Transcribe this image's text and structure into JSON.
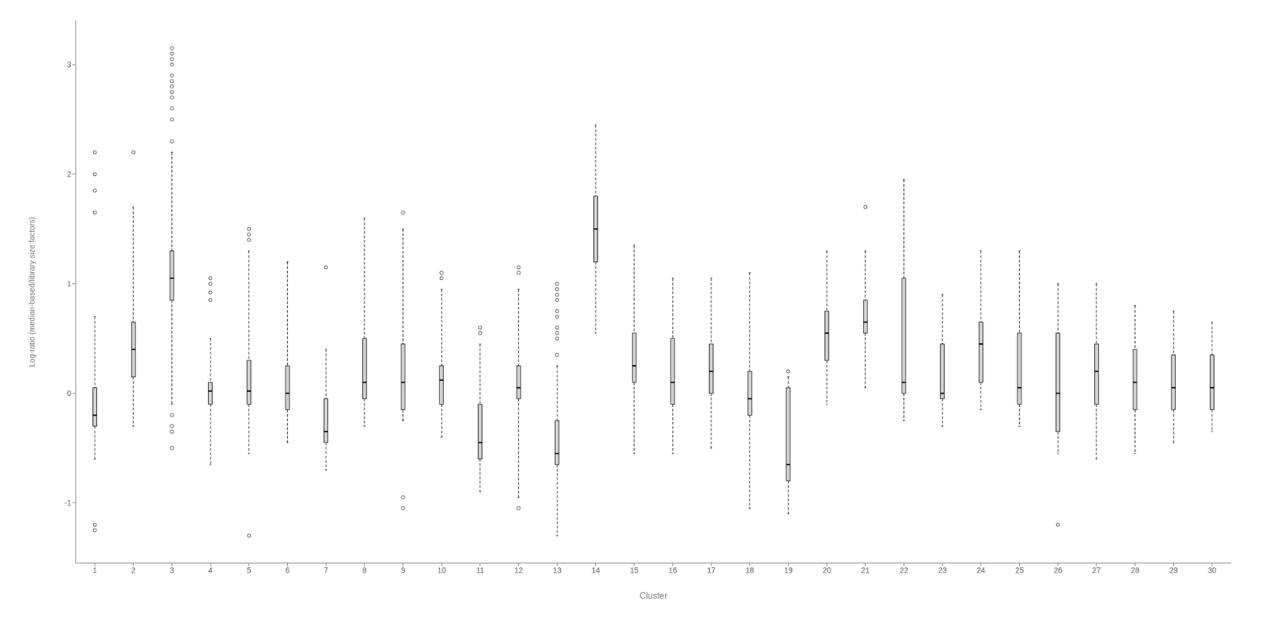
{
  "chart_data": {
    "type": "box",
    "xlabel": "Cluster",
    "ylabel": "Log-ratio (median-based/library size factors)",
    "categories": [
      "1",
      "2",
      "3",
      "4",
      "5",
      "6",
      "7",
      "8",
      "9",
      "10",
      "11",
      "12",
      "13",
      "14",
      "15",
      "16",
      "17",
      "18",
      "19",
      "20",
      "21",
      "22",
      "23",
      "24",
      "25",
      "26",
      "27",
      "28",
      "29",
      "30"
    ],
    "boxes": [
      {
        "q1": -0.3,
        "med": -0.2,
        "q3": 0.05,
        "whislo": -0.6,
        "whishi": 0.7,
        "fliers": [
          -1.2,
          -1.25,
          1.65,
          1.85,
          2.0,
          2.2
        ]
      },
      {
        "q1": 0.15,
        "med": 0.4,
        "q3": 0.65,
        "whislo": -0.3,
        "whishi": 1.7,
        "fliers": [
          2.2
        ]
      },
      {
        "q1": 0.85,
        "med": 1.05,
        "q3": 1.3,
        "whislo": -0.1,
        "whishi": 2.2,
        "fliers": [
          -0.2,
          -0.3,
          -0.35,
          -0.5,
          2.3,
          2.5,
          2.6,
          2.7,
          2.75,
          2.8,
          2.85,
          2.9,
          3.0,
          3.05,
          3.1,
          3.15
        ]
      },
      {
        "q1": -0.1,
        "med": 0.02,
        "q3": 0.1,
        "whislo": -0.65,
        "whishi": 0.5,
        "fliers": [
          0.85,
          0.92,
          1.0,
          1.05
        ]
      },
      {
        "q1": -0.1,
        "med": 0.02,
        "q3": 0.3,
        "whislo": -0.55,
        "whishi": 1.3,
        "fliers": [
          -1.3,
          1.4,
          1.45,
          1.5
        ]
      },
      {
        "q1": -0.15,
        "med": 0.0,
        "q3": 0.25,
        "whislo": -0.45,
        "whishi": 1.2,
        "fliers": []
      },
      {
        "q1": -0.45,
        "med": -0.35,
        "q3": -0.05,
        "whislo": -0.7,
        "whishi": 0.4,
        "fliers": [
          1.15
        ]
      },
      {
        "q1": -0.05,
        "med": 0.1,
        "q3": 0.5,
        "whislo": -0.3,
        "whishi": 1.6,
        "fliers": []
      },
      {
        "q1": -0.15,
        "med": 0.1,
        "q3": 0.45,
        "whislo": -0.25,
        "whishi": 1.5,
        "fliers": [
          -0.95,
          -1.05,
          1.65
        ]
      },
      {
        "q1": -0.1,
        "med": 0.12,
        "q3": 0.25,
        "whislo": -0.4,
        "whishi": 0.95,
        "fliers": [
          1.05,
          1.1
        ]
      },
      {
        "q1": -0.6,
        "med": -0.45,
        "q3": -0.1,
        "whislo": -0.9,
        "whishi": 0.45,
        "fliers": [
          0.55,
          0.6
        ]
      },
      {
        "q1": -0.05,
        "med": 0.05,
        "q3": 0.25,
        "whislo": -0.95,
        "whishi": 0.95,
        "fliers": [
          -1.05,
          1.1,
          1.15
        ]
      },
      {
        "q1": -0.65,
        "med": -0.55,
        "q3": -0.25,
        "whislo": -1.3,
        "whishi": 0.25,
        "fliers": [
          0.35,
          0.5,
          0.55,
          0.6,
          0.7,
          0.75,
          0.85,
          0.9,
          0.95,
          1.0
        ]
      },
      {
        "q1": 1.2,
        "med": 1.5,
        "q3": 1.8,
        "whislo": 0.55,
        "whishi": 2.45,
        "fliers": []
      },
      {
        "q1": 0.1,
        "med": 0.25,
        "q3": 0.55,
        "whislo": -0.55,
        "whishi": 1.35,
        "fliers": []
      },
      {
        "q1": -0.1,
        "med": 0.1,
        "q3": 0.5,
        "whislo": -0.55,
        "whishi": 1.05,
        "fliers": []
      },
      {
        "q1": 0.0,
        "med": 0.2,
        "q3": 0.45,
        "whislo": -0.5,
        "whishi": 1.05,
        "fliers": []
      },
      {
        "q1": -0.2,
        "med": -0.05,
        "q3": 0.2,
        "whislo": -1.05,
        "whishi": 1.1,
        "fliers": []
      },
      {
        "q1": -0.8,
        "med": -0.65,
        "q3": 0.05,
        "whislo": -1.1,
        "whishi": 0.15,
        "fliers": [
          0.2
        ]
      },
      {
        "q1": 0.3,
        "med": 0.55,
        "q3": 0.75,
        "whislo": -0.1,
        "whishi": 1.3,
        "fliers": []
      },
      {
        "q1": 0.55,
        "med": 0.65,
        "q3": 0.85,
        "whislo": 0.05,
        "whishi": 1.3,
        "fliers": [
          1.7
        ]
      },
      {
        "q1": 0.0,
        "med": 0.1,
        "q3": 1.05,
        "whislo": -0.25,
        "whishi": 1.95,
        "fliers": []
      },
      {
        "q1": -0.05,
        "med": 0.0,
        "q3": 0.45,
        "whislo": -0.3,
        "whishi": 0.9,
        "fliers": []
      },
      {
        "q1": 0.1,
        "med": 0.45,
        "q3": 0.65,
        "whislo": -0.15,
        "whishi": 1.3,
        "fliers": []
      },
      {
        "q1": -0.1,
        "med": 0.05,
        "q3": 0.55,
        "whislo": -0.3,
        "whishi": 1.3,
        "fliers": []
      },
      {
        "q1": -0.35,
        "med": 0.0,
        "q3": 0.55,
        "whislo": -0.55,
        "whishi": 1.0,
        "fliers": [
          -1.2
        ]
      },
      {
        "q1": -0.1,
        "med": 0.2,
        "q3": 0.45,
        "whislo": -0.6,
        "whishi": 1.0,
        "fliers": []
      },
      {
        "q1": -0.15,
        "med": 0.1,
        "q3": 0.4,
        "whislo": -0.55,
        "whishi": 0.8,
        "fliers": []
      },
      {
        "q1": -0.15,
        "med": 0.05,
        "q3": 0.35,
        "whislo": -0.45,
        "whishi": 0.75,
        "fliers": []
      },
      {
        "q1": -0.15,
        "med": 0.05,
        "q3": 0.35,
        "whislo": -0.35,
        "whishi": 0.65,
        "fliers": []
      }
    ],
    "color": "#d3d3d3",
    "ylim": [
      -1.55,
      3.4
    ],
    "yticks": [
      -1,
      0,
      1,
      2,
      3
    ],
    "grid": false
  }
}
